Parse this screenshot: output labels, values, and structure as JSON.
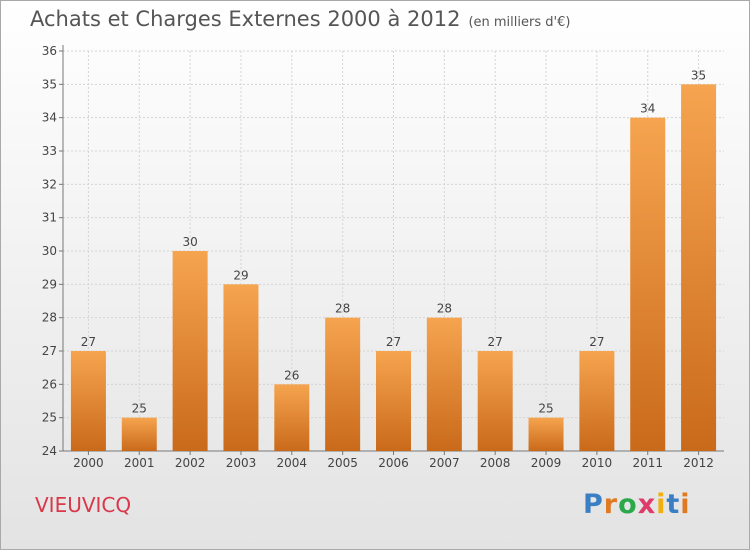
{
  "header": {
    "title": "Achats et Charges Externes 2000 à 2012",
    "unit": "(en milliers d'€)"
  },
  "footer": {
    "place": "VIEUVICQ",
    "brand": "Proxiti",
    "brand_colors": [
      "#3a7fc4",
      "#e07a22",
      "#2aa84a",
      "#e03a6a",
      "#f0b010",
      "#3a7fc4",
      "#e07a22"
    ]
  },
  "chart_data": {
    "type": "bar",
    "categories": [
      "2000",
      "2001",
      "2002",
      "2003",
      "2004",
      "2005",
      "2006",
      "2007",
      "2008",
      "2009",
      "2010",
      "2011",
      "2012"
    ],
    "values": [
      27,
      25,
      30,
      29,
      26,
      28,
      27,
      28,
      27,
      25,
      27,
      34,
      35
    ],
    "ylim": [
      24,
      36
    ],
    "yticks": [
      24,
      25,
      26,
      27,
      28,
      29,
      30,
      31,
      32,
      33,
      34,
      35,
      36
    ],
    "grid": true,
    "bar_color": "#f0923a",
    "bar_color_dark": "#c96a1a"
  }
}
